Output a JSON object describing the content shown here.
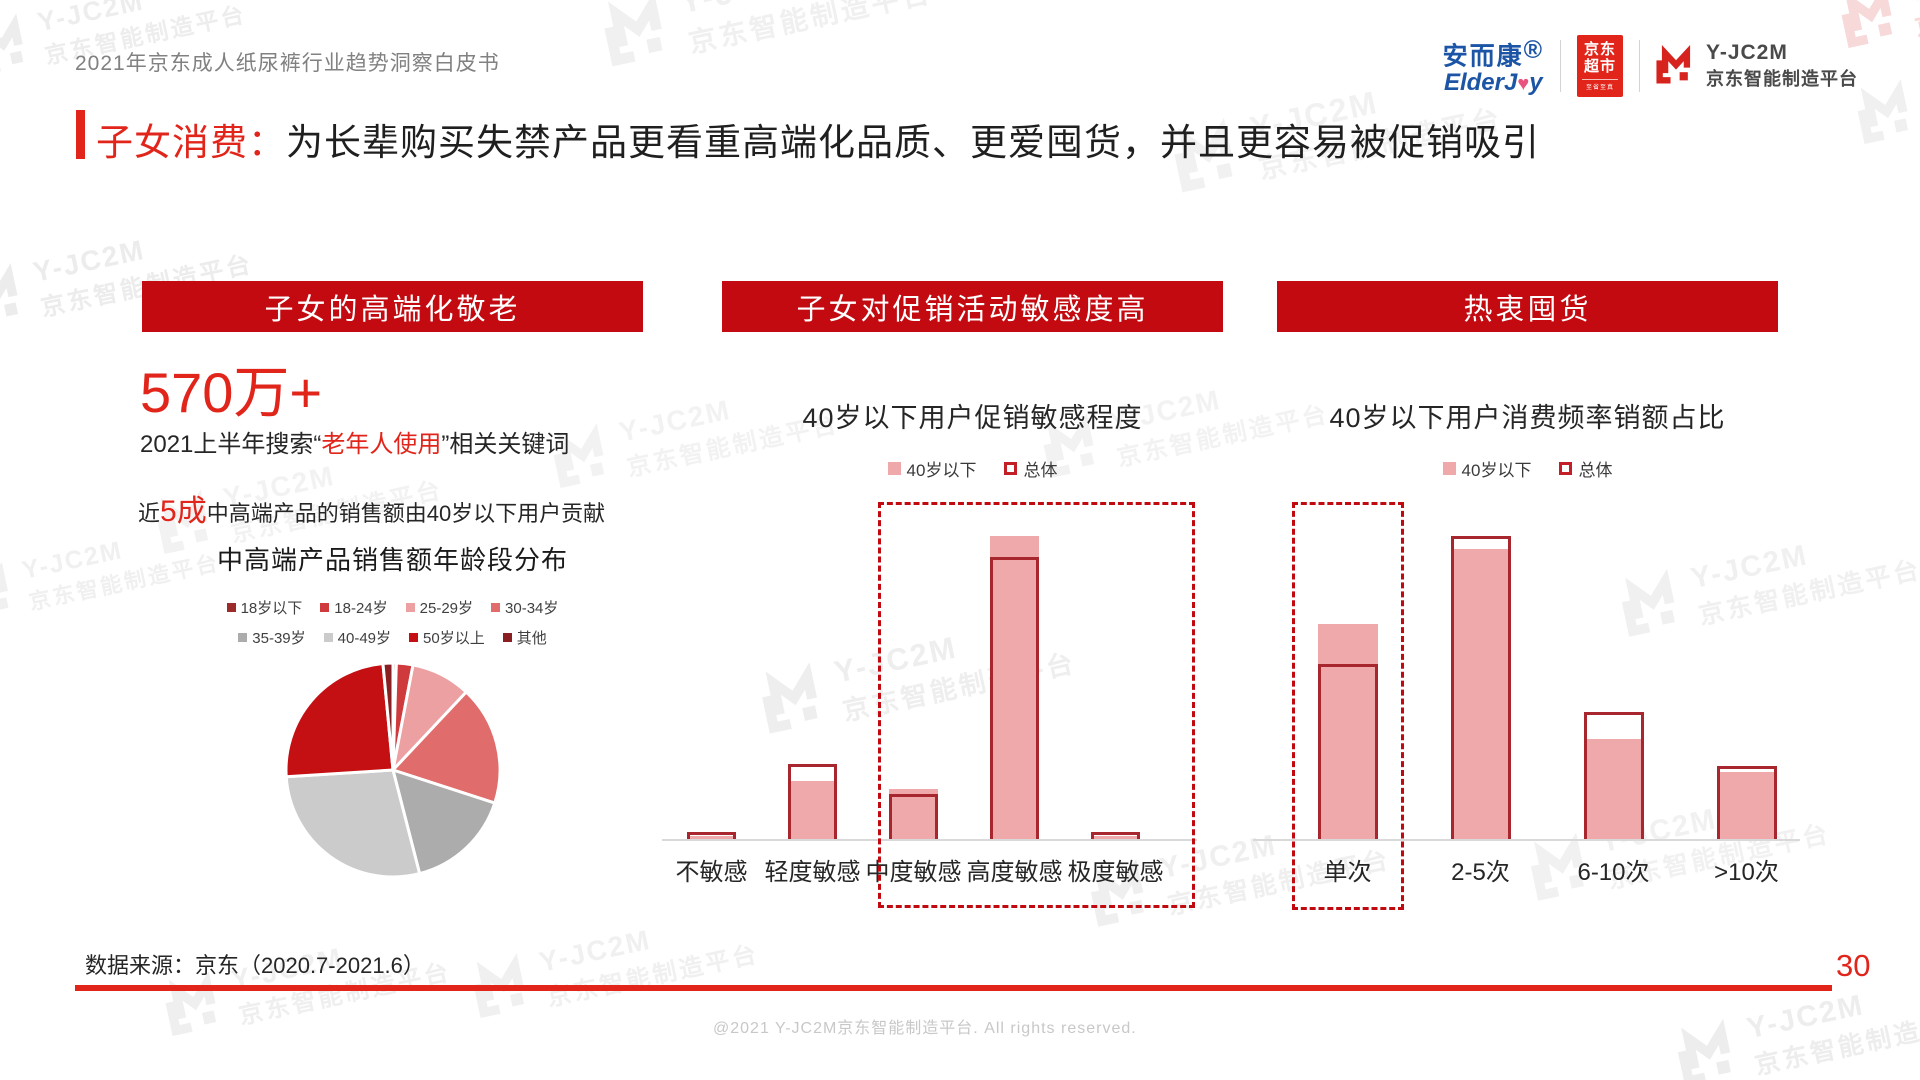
{
  "header": {
    "doc_title": "2021年京东成人纸尿裤行业趋势洞察白皮书",
    "logos": {
      "elderjoy_cn": "安而康",
      "elderjoy_reg": "®",
      "elderjoy_en_pre": "ElderJ",
      "elderjoy_en_post": "y",
      "jd_line1": "京东",
      "jd_line2": "超市",
      "jd_tagline": "至省至真",
      "platform_line1": "Y-JC2M",
      "platform_line2": "京东智能制造平台"
    }
  },
  "headline": {
    "prefix": "子女消费：",
    "rest": "为长辈购买失禁产品更看重高端化品质、更爱囤货，并且更容易被促销吸引"
  },
  "columns": {
    "left": {
      "banner": "子女的高端化敬老",
      "stat_value": "570万+",
      "stat_desc_pre": "2021上半年搜索“",
      "stat_desc_hl": "老年人使用",
      "stat_desc_post": "”相关关键词",
      "insight_pre": "近",
      "insight_hl": "5成",
      "insight_post": "中高端产品的销售额由40岁以下用户贡献"
    },
    "middle": {
      "banner": "子女对促销活动敏感度高"
    },
    "right": {
      "banner": "热衷囤货"
    }
  },
  "watermark": {
    "line1": "Y-JC2M",
    "line2": "京东智能制造平台"
  },
  "footer": {
    "source": "数据来源：京东（2020.7-2021.6）",
    "page_number": "30",
    "copyright": "@2021 Y-JC2M京东智能制造平台. All rights reserved."
  },
  "colors": {
    "jd_red": "#e1251b",
    "banner_red": "#c20a10",
    "dashed_red": "#c00a10",
    "bar_fill_pink": "#efa9ab",
    "bar_outline_red": "#a8262d",
    "text_dark": "#262626",
    "text_gray": "#818181",
    "watermark_gray": "#f0f0f0"
  },
  "chart_data": [
    {
      "id": "age-pie",
      "type": "pie",
      "title": "中高端产品销售额年龄段分布",
      "labels": [
        "18岁以下",
        "18-24岁",
        "25-29岁",
        "30-34岁",
        "35-39岁",
        "40-49岁",
        "50岁以上",
        "其他"
      ],
      "values": [
        0.5,
        2.5,
        9,
        18,
        16,
        28,
        24.5,
        1.5
      ],
      "colors": [
        "#9c2b2b",
        "#cf3a3c",
        "#eca0a2",
        "#e06c6c",
        "#acacac",
        "#cbcbcb",
        "#c40f13",
        "#8a1f23"
      ],
      "unit": "%",
      "start_angle_deg": 0,
      "direction": "clockwise",
      "legend_position": "top",
      "note": "近5成销售额由40岁以下用户贡献"
    },
    {
      "id": "promo-sensitivity",
      "type": "bar",
      "title": "40岁以下用户促销敏感程度",
      "categories": [
        "不敏感",
        "轻度敏感",
        "中度敏感",
        "高度敏感",
        "极度敏感"
      ],
      "series": [
        {
          "name": "40岁以下",
          "style": "filled",
          "color": "#efa9ab",
          "values": [
            1,
            14,
            12,
            72,
            1
          ]
        },
        {
          "name": "总体",
          "style": "outlined",
          "color": "#a8262d",
          "values": [
            2,
            18,
            11,
            67,
            2
          ]
        }
      ],
      "unit": "%",
      "ylim": [
        0,
        80
      ],
      "y_axis_visible": false,
      "grid": false,
      "legend_position": "top",
      "highlight_box_categories": [
        "中度敏感",
        "高度敏感",
        "极度敏感"
      ]
    },
    {
      "id": "purchase-frequency",
      "type": "bar",
      "title": "40岁以下用户消费频率销额占比",
      "categories": [
        "单次",
        "2-5次",
        "6-10次",
        ">10次"
      ],
      "series": [
        {
          "name": "40岁以下",
          "style": "filled",
          "color": "#efa9ab",
          "values": [
            32,
            43,
            15,
            10
          ]
        },
        {
          "name": "总体",
          "style": "outlined",
          "color": "#a8262d",
          "values": [
            26,
            45,
            19,
            11
          ]
        }
      ],
      "unit": "%",
      "ylim": [
        0,
        50
      ],
      "y_axis_visible": false,
      "grid": false,
      "legend_position": "top",
      "highlight_box_categories": [
        "单次"
      ]
    }
  ]
}
